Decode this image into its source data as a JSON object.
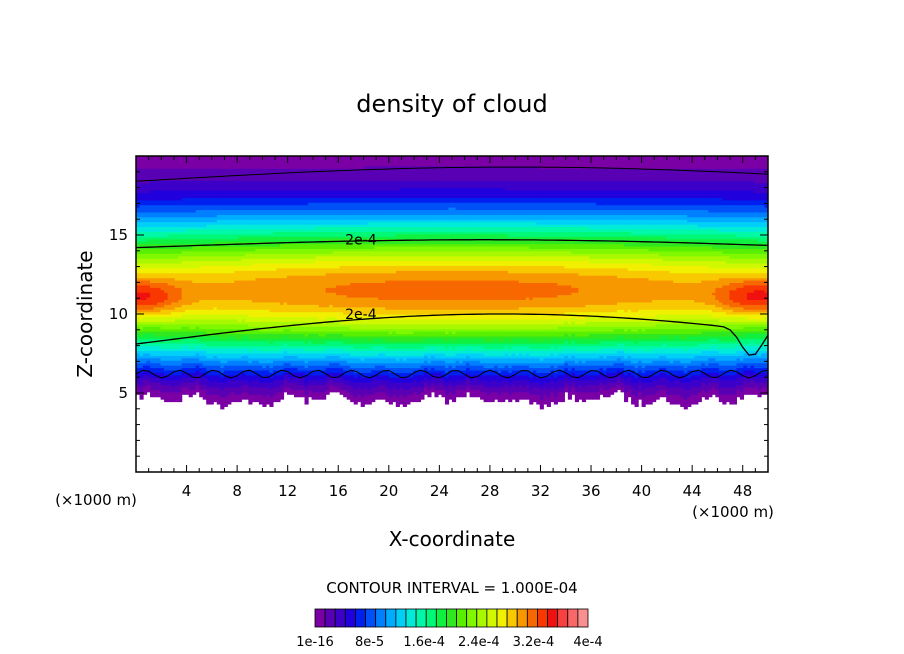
{
  "chart_data": {
    "type": "heatmap",
    "title": "density of cloud",
    "xlabel": "X-coordinate",
    "ylabel": "Z-coordinate",
    "x_unit": "(×1000 m)",
    "y_unit": "(×1000 m)",
    "xlim": [
      0,
      50
    ],
    "ylim": [
      0,
      20
    ],
    "x_ticks": [
      4,
      8,
      12,
      16,
      20,
      24,
      28,
      32,
      36,
      40,
      44,
      48
    ],
    "x_tick_labels": [
      "4",
      "8",
      "12",
      "16",
      "20",
      "24",
      "28",
      "32",
      "36",
      "40",
      "44",
      "48"
    ],
    "y_ticks": [
      5,
      10,
      15
    ],
    "y_tick_labels": [
      "5",
      "10",
      "15"
    ],
    "contour_interval_text": "CONTOUR INTERVAL = 1.000E-04",
    "contour_labels": [
      {
        "text": "2e-4",
        "x": 17,
        "z": 14.7
      },
      {
        "text": "2e-4",
        "x": 17,
        "z": 10.0
      }
    ],
    "colorbar": {
      "colors": [
        "#7a00a6",
        "#5a00b4",
        "#3c00c8",
        "#2000dc",
        "#0020f0",
        "#0050f8",
        "#0080ff",
        "#00acff",
        "#00d0f8",
        "#00ecd8",
        "#00f8a8",
        "#00f878",
        "#10f040",
        "#30e820",
        "#58f000",
        "#80f800",
        "#a8f800",
        "#d0f800",
        "#f0f000",
        "#f8c800",
        "#f89800",
        "#f86800",
        "#f83800",
        "#f01010",
        "#f84040",
        "#f86868",
        "#f89090"
      ],
      "tick_labels": [
        "1e-16",
        "8e-5",
        "1.6e-4",
        "2.4e-4",
        "3.2e-4",
        "4e-4"
      ],
      "tick_values": [
        0,
        8e-05,
        0.00016,
        0.00024,
        0.00032,
        0.0004
      ],
      "range": [
        0,
        0.0004
      ]
    }
  }
}
